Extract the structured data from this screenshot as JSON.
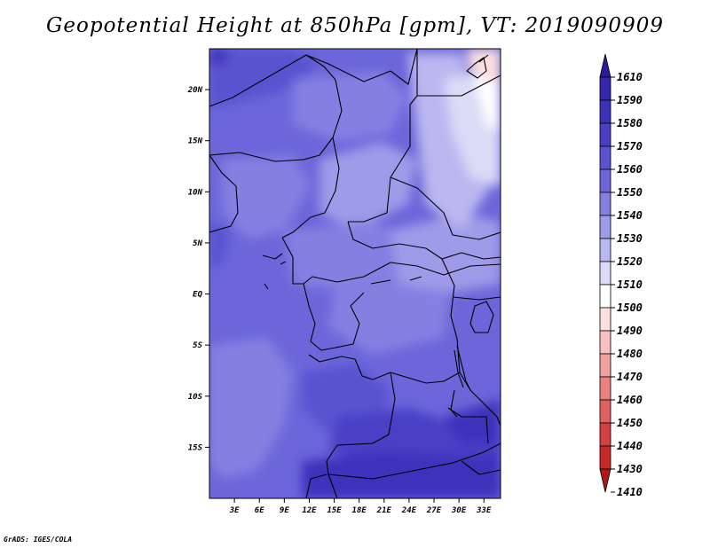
{
  "title": "Geopotential Height at 850hPa [gpm], VT: 2019090909",
  "credit": "GrADS: IGES/COLA",
  "map": {
    "lon_range": [
      0,
      35
    ],
    "lat_range": [
      -20,
      24
    ],
    "lat_ticks": [
      {
        "value": 20,
        "label": "20N"
      },
      {
        "value": 15,
        "label": "15N"
      },
      {
        "value": 10,
        "label": "10N"
      },
      {
        "value": 5,
        "label": "5N"
      },
      {
        "value": 0,
        "label": "EQ"
      },
      {
        "value": -5,
        "label": "5S"
      },
      {
        "value": -10,
        "label": "10S"
      },
      {
        "value": -15,
        "label": "15S"
      }
    ],
    "lon_ticks": [
      {
        "value": 3,
        "label": "3E"
      },
      {
        "value": 6,
        "label": "6E"
      },
      {
        "value": 9,
        "label": "9E"
      },
      {
        "value": 12,
        "label": "12E"
      },
      {
        "value": 15,
        "label": "15E"
      },
      {
        "value": 18,
        "label": "18E"
      },
      {
        "value": 21,
        "label": "21E"
      },
      {
        "value": 24,
        "label": "24E"
      },
      {
        "value": 27,
        "label": "27E"
      },
      {
        "value": 30,
        "label": "30E"
      },
      {
        "value": 33,
        "label": "33E"
      }
    ]
  },
  "colorbar": {
    "levels": [
      "1610",
      "1590",
      "1580",
      "1570",
      "1560",
      "1550",
      "1540",
      "1530",
      "1520",
      "1510",
      "1500",
      "1490",
      "1480",
      "1470",
      "1460",
      "1450",
      "1440",
      "1430",
      "1410"
    ],
    "colors": [
      "#2a1b9c",
      "#3325ad",
      "#3d31bb",
      "#4a40c6",
      "#5a52d0",
      "#6c66da",
      "#8480e2",
      "#9e9be9",
      "#bab8f0",
      "#dcdbf7",
      "#ffffff",
      "#fde0e0",
      "#f8c0c0",
      "#f2a0a0",
      "#ea8080",
      "#e06060",
      "#d64040",
      "#c82828",
      "#b01818"
    ]
  }
}
